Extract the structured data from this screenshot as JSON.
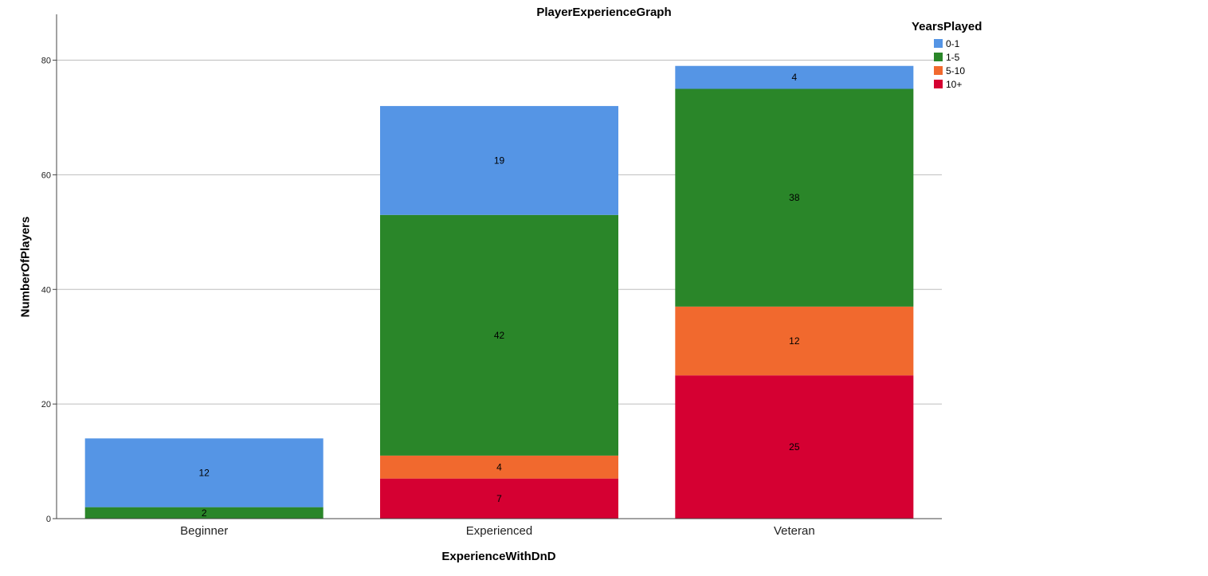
{
  "chart_data": {
    "type": "bar",
    "stacked": true,
    "title": "PlayerExperienceGraph",
    "xlabel": "ExperienceWithDnD",
    "ylabel": "NumberOfPlayers",
    "categories": [
      "Beginner",
      "Experienced",
      "Veteran"
    ],
    "ylim": [
      0,
      88
    ],
    "yticks": [
      0,
      20,
      40,
      60,
      80
    ],
    "grid": true,
    "legend": {
      "title": "YearsPlayed",
      "placement": "top-right"
    },
    "series": [
      {
        "name": "10+",
        "color": "#d50032",
        "values": [
          0,
          7,
          25
        ]
      },
      {
        "name": "5-10",
        "color": "#f1692e",
        "values": [
          0,
          4,
          12
        ]
      },
      {
        "name": "1-5",
        "color": "#2a8629",
        "values": [
          2,
          42,
          38
        ]
      },
      {
        "name": "0-1",
        "color": "#5595e5",
        "values": [
          12,
          19,
          4
        ]
      }
    ]
  }
}
